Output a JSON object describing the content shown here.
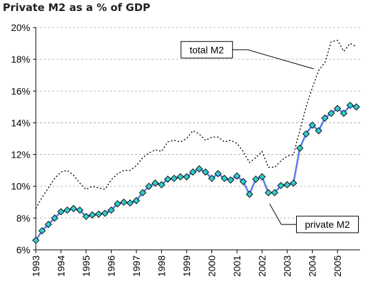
{
  "chart_data": {
    "type": "line",
    "title": "Private M2 as a % of GDP",
    "xlabel": "",
    "ylabel": "",
    "xlim": [
      1993,
      2005.9
    ],
    "ylim": [
      6,
      20
    ],
    "grid": true,
    "y_tick_values": [
      6,
      8,
      10,
      12,
      14,
      16,
      18,
      20
    ],
    "y_tick_labels": [
      "6%",
      "8%",
      "10%",
      "12%",
      "14%",
      "16%",
      "18%",
      "20%"
    ],
    "x_tick_values": [
      1993,
      1994,
      1995,
      1996,
      1997,
      1998,
      1999,
      2000,
      2001,
      2002,
      2003,
      2004,
      2005
    ],
    "x_tick_labels": [
      "1993",
      "1994",
      "1995",
      "1996",
      "1997",
      "1998",
      "1999",
      "2000",
      "2001",
      "2002",
      "2003",
      "2004",
      "2005"
    ],
    "series": [
      {
        "name": "total M2",
        "style": "dotted",
        "color": "#000000",
        "x": [
          1993.0,
          1993.25,
          1993.5,
          1993.75,
          1994.0,
          1994.25,
          1994.5,
          1994.75,
          1995.0,
          1995.25,
          1995.5,
          1995.75,
          1996.0,
          1996.25,
          1996.5,
          1996.75,
          1997.0,
          1997.25,
          1997.5,
          1997.75,
          1998.0,
          1998.25,
          1998.5,
          1998.75,
          1999.0,
          1999.25,
          1999.5,
          1999.75,
          2000.0,
          2000.25,
          2000.5,
          2000.75,
          2001.0,
          2001.25,
          2001.5,
          2001.75,
          2002.0,
          2002.25,
          2002.5,
          2002.75,
          2003.0,
          2003.25,
          2003.5,
          2003.75,
          2004.0,
          2004.25,
          2004.5,
          2004.75,
          2005.0,
          2005.25,
          2005.5,
          2005.75
        ],
        "values": [
          8.6,
          9.3,
          9.9,
          10.5,
          10.9,
          11.0,
          10.7,
          10.2,
          9.8,
          10.0,
          9.9,
          9.8,
          10.4,
          10.8,
          11.0,
          11.0,
          11.3,
          11.8,
          12.1,
          12.3,
          12.2,
          12.8,
          12.9,
          12.8,
          13.0,
          13.5,
          13.3,
          12.9,
          13.1,
          13.1,
          12.8,
          12.9,
          12.7,
          12.2,
          11.5,
          11.8,
          12.2,
          11.2,
          11.2,
          11.6,
          11.9,
          12.0,
          13.5,
          15.0,
          16.2,
          17.3,
          17.8,
          19.1,
          19.2,
          18.5,
          19.0,
          18.8
        ]
      },
      {
        "name": "private M2",
        "style": "line-markers",
        "color": "#5b7fe8",
        "marker_color": "#33cccc",
        "x": [
          1993.0,
          1993.25,
          1993.5,
          1993.75,
          1994.0,
          1994.25,
          1994.5,
          1994.75,
          1995.0,
          1995.25,
          1995.5,
          1995.75,
          1996.0,
          1996.25,
          1996.5,
          1996.75,
          1997.0,
          1997.25,
          1997.5,
          1997.75,
          1998.0,
          1998.25,
          1998.5,
          1998.75,
          1999.0,
          1999.25,
          1999.5,
          1999.75,
          2000.0,
          2000.25,
          2000.5,
          2000.75,
          2001.0,
          2001.25,
          2001.5,
          2001.75,
          2002.0,
          2002.25,
          2002.5,
          2002.75,
          2003.0,
          2003.25,
          2003.5,
          2003.75,
          2004.0,
          2004.25,
          2004.5,
          2004.75,
          2005.0,
          2005.25,
          2005.5,
          2005.75
        ],
        "values": [
          6.6,
          7.2,
          7.6,
          8.0,
          8.4,
          8.5,
          8.6,
          8.5,
          8.1,
          8.2,
          8.25,
          8.3,
          8.5,
          8.9,
          9.0,
          8.95,
          9.1,
          9.6,
          10.0,
          10.2,
          10.1,
          10.45,
          10.5,
          10.6,
          10.6,
          10.9,
          11.1,
          10.9,
          10.5,
          10.8,
          10.5,
          10.4,
          10.65,
          10.3,
          9.5,
          10.45,
          10.6,
          9.6,
          9.6,
          10.05,
          10.1,
          10.2,
          12.4,
          13.3,
          13.85,
          13.5,
          14.3,
          14.6,
          14.9,
          14.6,
          15.1,
          15.0
        ]
      }
    ],
    "annotations": [
      {
        "text": "total M2",
        "box_x": 1999.8,
        "box_y": 18.6,
        "arrow_to_x": 2004.05,
        "arrow_to_y": 17.4
      },
      {
        "text": "private M2",
        "box_x": 2004.6,
        "box_y": 7.6,
        "arrow_to_x": 2002.3,
        "arrow_to_y": 8.9
      }
    ]
  }
}
